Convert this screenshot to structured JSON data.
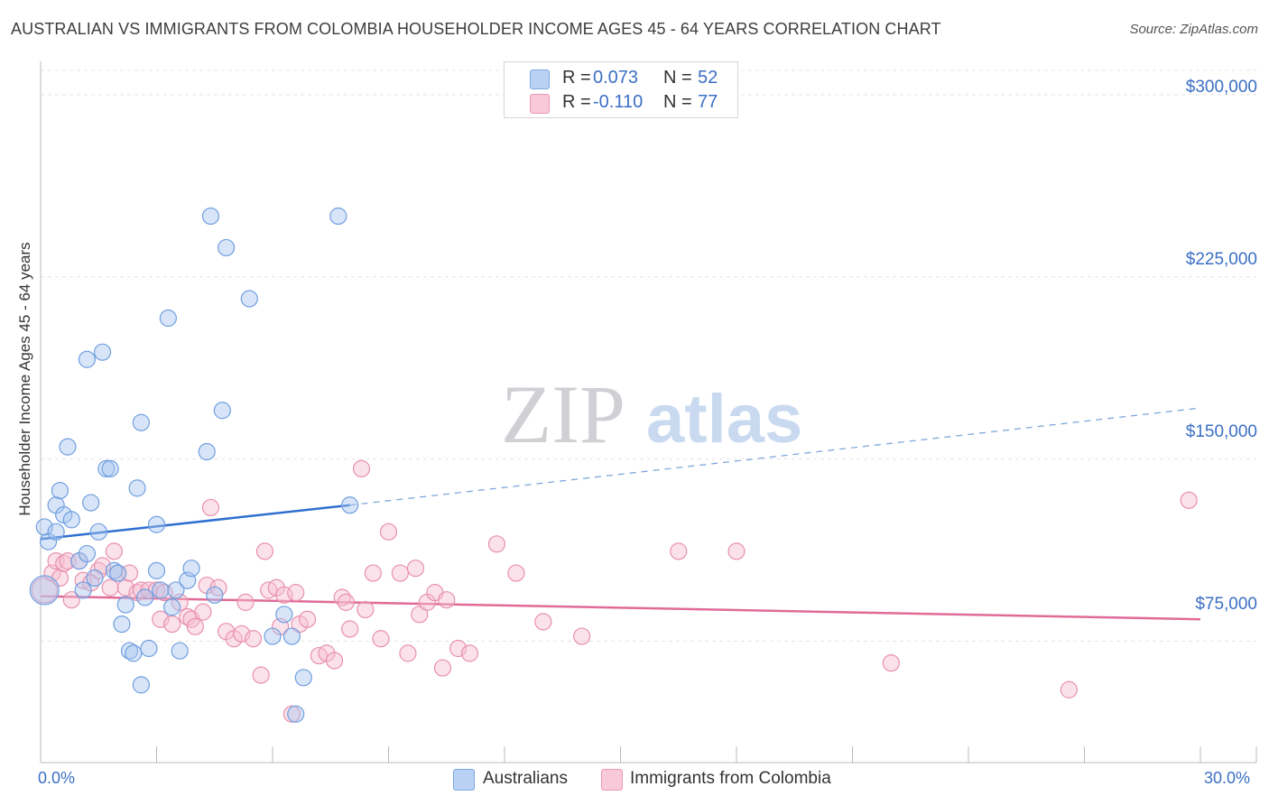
{
  "chart_data": {
    "type": "scatter",
    "title": "AUSTRALIAN VS IMMIGRANTS FROM COLOMBIA HOUSEHOLDER INCOME AGES 45 - 64 YEARS CORRELATION CHART",
    "source": "Source: ZipAtlas.com",
    "watermark": {
      "zip": "ZIP",
      "atlas": "atlas"
    },
    "ylabel": "Householder Income Ages 45 - 64 years",
    "xlim": [
      0,
      30
    ],
    "ylim": [
      25000,
      310000
    ],
    "x_tick_labels": [
      "0.0%",
      "30.0%"
    ],
    "y_ticks": [
      {
        "value": 300000,
        "label": "$300,000"
      },
      {
        "value": 225000,
        "label": "$225,000"
      },
      {
        "value": 150000,
        "label": "$150,000"
      },
      {
        "value": 75000,
        "label": "$75,000"
      }
    ],
    "legend": {
      "r_label": "R =",
      "n_label": "N =",
      "rows": [
        {
          "r": "0.073",
          "n": "52"
        },
        {
          "r": "-0.110",
          "n": "77"
        }
      ]
    },
    "series": [
      {
        "name": "Australians",
        "color": "#6f9fe0",
        "fill": "#a8c6ef",
        "line_color": "#2f6fcf",
        "trend": {
          "x0": 0,
          "y0": 117000,
          "x1": 8,
          "y1": 131000,
          "dash_to_x": 30,
          "dash_to_y": 171000
        },
        "points": [
          [
            0.1,
            96000,
            16
          ],
          [
            0.1,
            122000,
            9
          ],
          [
            0.2,
            116000,
            9
          ],
          [
            0.4,
            120000,
            9
          ],
          [
            0.4,
            131000,
            9
          ],
          [
            0.5,
            137000,
            9
          ],
          [
            0.6,
            127000,
            9
          ],
          [
            0.7,
            155000,
            9
          ],
          [
            0.8,
            125000,
            9
          ],
          [
            1.0,
            108000,
            9
          ],
          [
            1.1,
            96000,
            9
          ],
          [
            1.2,
            111000,
            9
          ],
          [
            1.2,
            191000,
            9
          ],
          [
            1.3,
            132000,
            9
          ],
          [
            1.4,
            101000,
            9
          ],
          [
            1.5,
            120000,
            9
          ],
          [
            1.6,
            194000,
            9
          ],
          [
            1.7,
            146000,
            9
          ],
          [
            1.8,
            146000,
            9
          ],
          [
            1.9,
            104000,
            9
          ],
          [
            2.0,
            103000,
            9
          ],
          [
            2.1,
            82000,
            9
          ],
          [
            2.2,
            90000,
            9
          ],
          [
            2.3,
            71000,
            9
          ],
          [
            2.4,
            70000,
            9
          ],
          [
            2.5,
            138000,
            9
          ],
          [
            2.6,
            57000,
            9
          ],
          [
            2.6,
            165000,
            9
          ],
          [
            2.7,
            93000,
            9
          ],
          [
            2.8,
            72000,
            9
          ],
          [
            3.0,
            104000,
            9
          ],
          [
            3.0,
            123000,
            9
          ],
          [
            3.1,
            96000,
            9
          ],
          [
            3.3,
            208000,
            9
          ],
          [
            3.4,
            89000,
            9
          ],
          [
            3.5,
            96000,
            9
          ],
          [
            3.6,
            71000,
            9
          ],
          [
            3.8,
            100000,
            9
          ],
          [
            3.9,
            105000,
            9
          ],
          [
            4.3,
            153000,
            9
          ],
          [
            4.4,
            250000,
            9
          ],
          [
            4.5,
            94000,
            9
          ],
          [
            4.7,
            170000,
            9
          ],
          [
            4.8,
            237000,
            9
          ],
          [
            5.4,
            216000,
            9
          ],
          [
            6.0,
            77000,
            9
          ],
          [
            6.3,
            86000,
            9
          ],
          [
            6.5,
            77000,
            9
          ],
          [
            6.6,
            45000,
            9
          ],
          [
            6.8,
            60000,
            9
          ],
          [
            7.7,
            250000,
            9
          ],
          [
            8.0,
            131000,
            9
          ]
        ]
      },
      {
        "name": "Immigrants from Colombia",
        "color": "#e890ad",
        "fill": "#f6bfd1",
        "line_color": "#e06b98",
        "trend": {
          "x0": 0,
          "y0": 93500,
          "x1": 30,
          "y1": 84000
        },
        "points": [
          [
            0.1,
            96000,
            14
          ],
          [
            0.3,
            103000,
            9
          ],
          [
            0.4,
            108000,
            9
          ],
          [
            0.5,
            101000,
            9
          ],
          [
            0.6,
            107000,
            9
          ],
          [
            0.7,
            108000,
            9
          ],
          [
            0.8,
            92000,
            9
          ],
          [
            1.0,
            108000,
            9
          ],
          [
            1.1,
            100000,
            9
          ],
          [
            1.3,
            99000,
            9
          ],
          [
            1.5,
            104000,
            9
          ],
          [
            1.6,
            106000,
            9
          ],
          [
            1.8,
            97000,
            9
          ],
          [
            1.9,
            112000,
            9
          ],
          [
            2.0,
            103000,
            9
          ],
          [
            2.2,
            97000,
            9
          ],
          [
            2.3,
            103000,
            9
          ],
          [
            2.5,
            95000,
            9
          ],
          [
            2.6,
            96000,
            9
          ],
          [
            2.8,
            96000,
            9
          ],
          [
            3.0,
            96000,
            9
          ],
          [
            3.1,
            84000,
            9
          ],
          [
            3.2,
            95000,
            9
          ],
          [
            3.4,
            82000,
            9
          ],
          [
            3.6,
            91000,
            9
          ],
          [
            3.8,
            85000,
            9
          ],
          [
            3.9,
            84000,
            9
          ],
          [
            4.0,
            81000,
            9
          ],
          [
            4.2,
            87000,
            9
          ],
          [
            4.3,
            98000,
            9
          ],
          [
            4.4,
            130000,
            9
          ],
          [
            4.6,
            97000,
            9
          ],
          [
            4.8,
            79000,
            9
          ],
          [
            5.0,
            76000,
            9
          ],
          [
            5.2,
            78000,
            9
          ],
          [
            5.3,
            91000,
            9
          ],
          [
            5.5,
            76000,
            9
          ],
          [
            5.7,
            61000,
            9
          ],
          [
            5.8,
            112000,
            9
          ],
          [
            5.9,
            96000,
            9
          ],
          [
            6.1,
            97000,
            9
          ],
          [
            6.2,
            81000,
            9
          ],
          [
            6.3,
            94000,
            9
          ],
          [
            6.5,
            45000,
            9
          ],
          [
            6.6,
            95000,
            9
          ],
          [
            6.7,
            82000,
            9
          ],
          [
            6.9,
            84000,
            9
          ],
          [
            7.2,
            69000,
            9
          ],
          [
            7.4,
            70000,
            9
          ],
          [
            7.6,
            67000,
            9
          ],
          [
            7.8,
            93000,
            9
          ],
          [
            7.9,
            91000,
            9
          ],
          [
            8.0,
            80000,
            9
          ],
          [
            8.3,
            146000,
            9
          ],
          [
            8.4,
            88000,
            9
          ],
          [
            8.6,
            103000,
            9
          ],
          [
            8.8,
            76000,
            9
          ],
          [
            9.0,
            120000,
            9
          ],
          [
            9.3,
            103000,
            9
          ],
          [
            9.5,
            70000,
            9
          ],
          [
            9.7,
            105000,
            9
          ],
          [
            9.8,
            86000,
            9
          ],
          [
            10.0,
            91000,
            9
          ],
          [
            10.2,
            95000,
            9
          ],
          [
            10.4,
            64000,
            9
          ],
          [
            10.5,
            92000,
            9
          ],
          [
            10.8,
            72000,
            9
          ],
          [
            11.1,
            70000,
            9
          ],
          [
            11.8,
            115000,
            9
          ],
          [
            12.3,
            103000,
            9
          ],
          [
            13.0,
            83000,
            9
          ],
          [
            14.0,
            77000,
            9
          ],
          [
            16.5,
            112000,
            9
          ],
          [
            18.0,
            112000,
            9
          ],
          [
            22.0,
            66000,
            9
          ],
          [
            26.6,
            55000,
            9
          ],
          [
            29.7,
            133000,
            9
          ]
        ]
      }
    ]
  }
}
